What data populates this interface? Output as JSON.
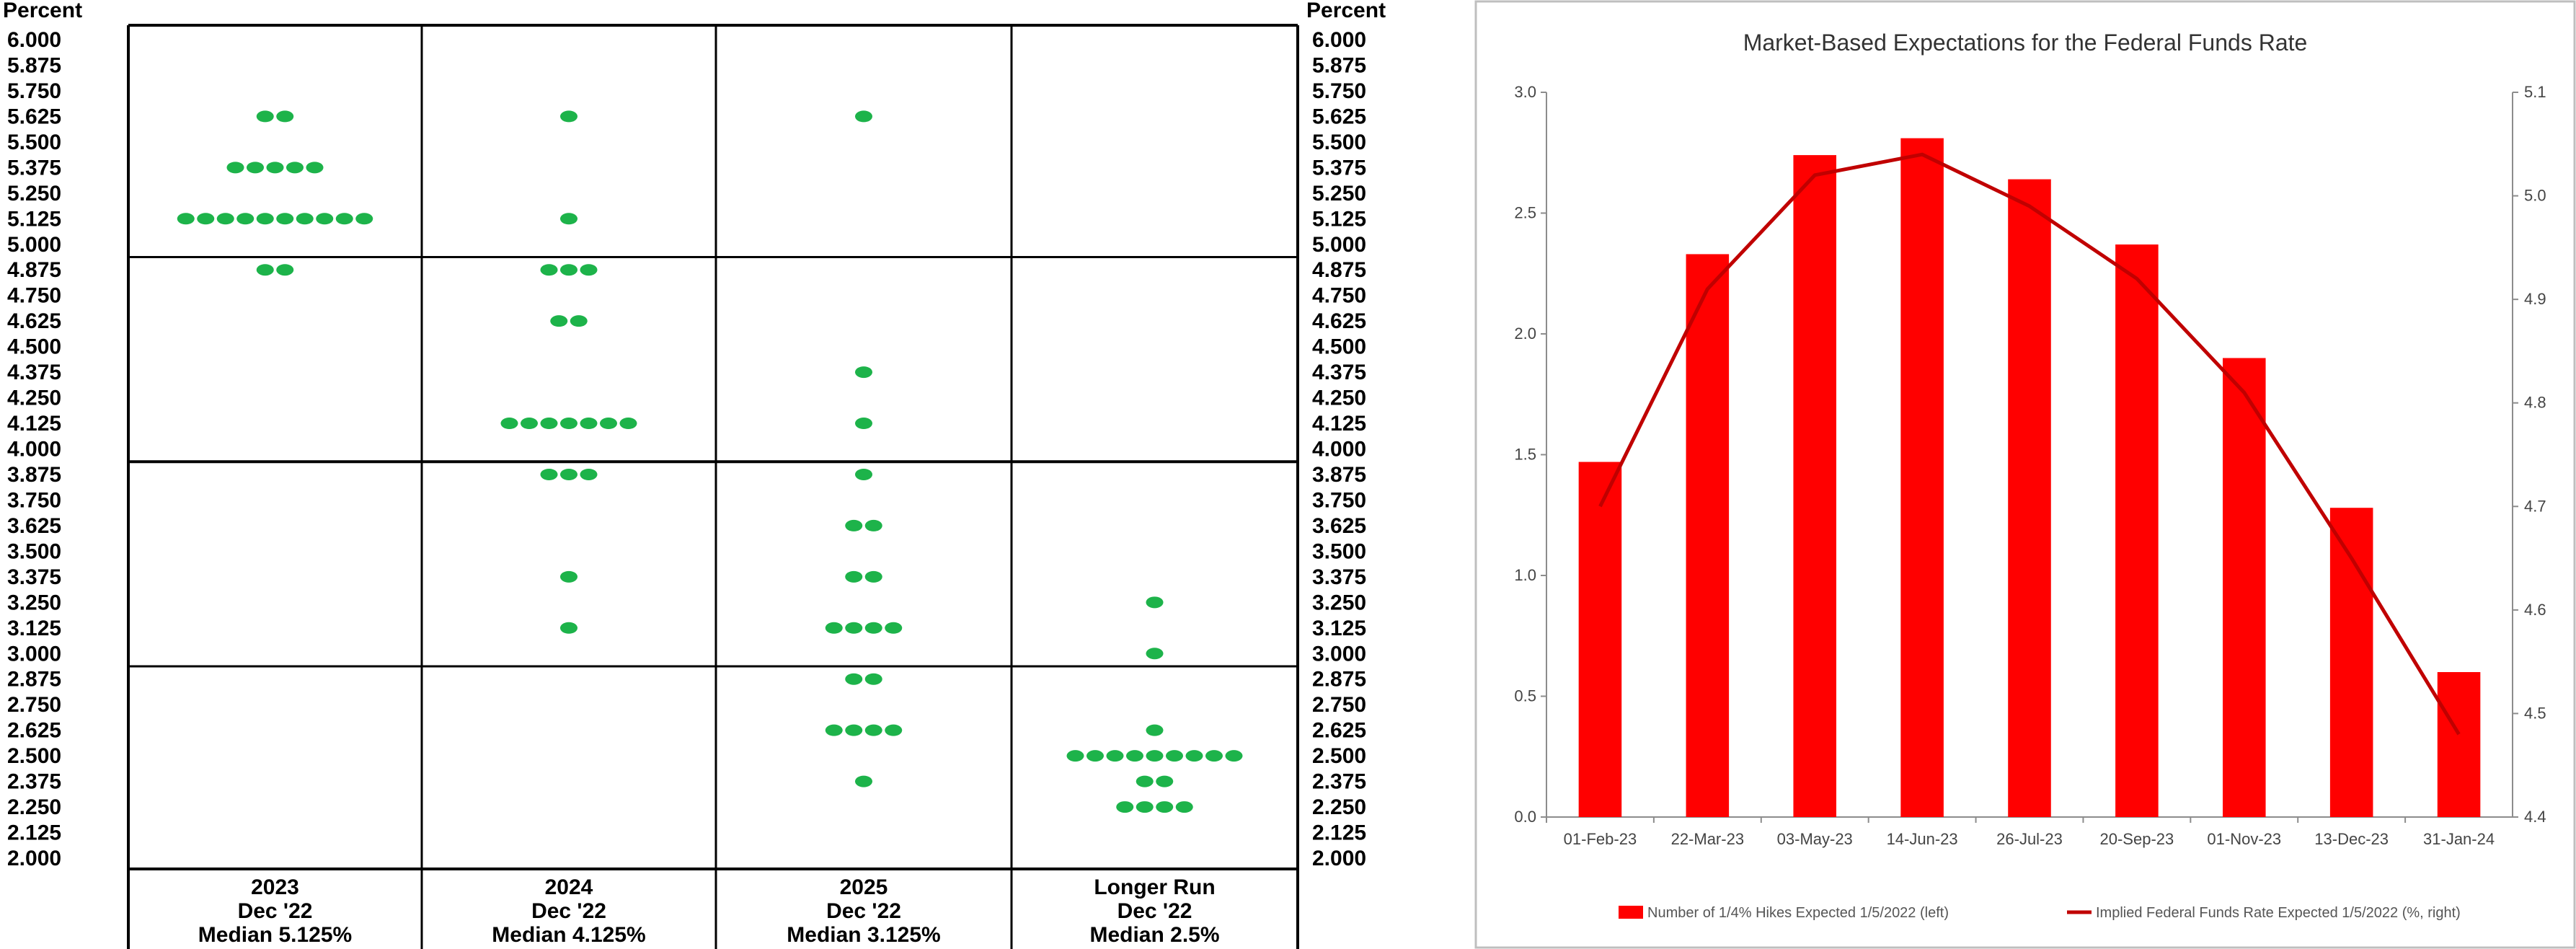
{
  "chart_data": [
    {
      "type": "scatter",
      "ylabel_left": "Percent",
      "ylabel_right": "Percent",
      "ylim": [
        2.0,
        6.0
      ],
      "y_ticks": [
        "6.000",
        "5.875",
        "5.750",
        "5.625",
        "5.500",
        "5.375",
        "5.250",
        "5.125",
        "5.000",
        "4.875",
        "4.750",
        "4.625",
        "4.500",
        "4.375",
        "4.250",
        "4.125",
        "4.000",
        "3.875",
        "3.750",
        "3.625",
        "3.500",
        "3.375",
        "3.250",
        "3.125",
        "3.000",
        "2.875",
        "2.750",
        "2.625",
        "2.500",
        "2.375",
        "2.250",
        "2.125",
        "2.000"
      ],
      "grid": true,
      "columns": [
        {
          "name": "2023",
          "label2": "Dec '22",
          "median": "Median  5.125%",
          "dots": [
            {
              "rate": 5.625,
              "count": 2
            },
            {
              "rate": 5.375,
              "count": 5
            },
            {
              "rate": 5.125,
              "count": 10
            },
            {
              "rate": 4.875,
              "count": 2
            }
          ]
        },
        {
          "name": "2024",
          "label2": "Dec '22",
          "median": "Median 4.125%",
          "dots": [
            {
              "rate": 5.625,
              "count": 1
            },
            {
              "rate": 5.125,
              "count": 1
            },
            {
              "rate": 4.875,
              "count": 3
            },
            {
              "rate": 4.625,
              "count": 2
            },
            {
              "rate": 4.125,
              "count": 7
            },
            {
              "rate": 3.875,
              "count": 3
            },
            {
              "rate": 3.375,
              "count": 1
            },
            {
              "rate": 3.125,
              "count": 1
            }
          ]
        },
        {
          "name": "2025",
          "label2": "Dec '22",
          "median": "Median 3.125%",
          "dots": [
            {
              "rate": 5.625,
              "count": 1
            },
            {
              "rate": 4.375,
              "count": 1
            },
            {
              "rate": 4.125,
              "count": 1
            },
            {
              "rate": 3.875,
              "count": 1
            },
            {
              "rate": 3.625,
              "count": 2
            },
            {
              "rate": 3.375,
              "count": 2
            },
            {
              "rate": 3.125,
              "count": 4
            },
            {
              "rate": 2.875,
              "count": 2
            },
            {
              "rate": 2.625,
              "count": 4
            },
            {
              "rate": 2.375,
              "count": 1
            }
          ]
        },
        {
          "name": "Longer Run",
          "label2": "Dec '22",
          "median": "Median  2.5%",
          "dots": [
            {
              "rate": 3.25,
              "count": 1
            },
            {
              "rate": 3.0,
              "count": 1
            },
            {
              "rate": 2.625,
              "count": 1
            },
            {
              "rate": 2.5,
              "count": 9
            },
            {
              "rate": 2.375,
              "count": 2
            },
            {
              "rate": 2.25,
              "count": 4
            }
          ]
        }
      ],
      "dot_color": "#1db34a"
    },
    {
      "type": "bar",
      "title": "Market-Based Expectations for the Federal Funds Rate",
      "categories": [
        "01-Feb-23",
        "22-Mar-23",
        "03-May-23",
        "14-Jun-23",
        "26-Jul-23",
        "20-Sep-23",
        "01-Nov-23",
        "13-Dec-23",
        "31-Jan-24"
      ],
      "series": [
        {
          "name": "Number of 1/4% Hikes Expected 1/5/2022 (left)",
          "type": "bar",
          "axis": "left",
          "color": "#ff0000",
          "values": [
            1.47,
            2.33,
            2.74,
            2.81,
            2.64,
            2.37,
            1.9,
            1.28,
            0.6
          ]
        },
        {
          "name": "Implied Federal Funds Rate Expected 1/5/2022 (%, right)",
          "type": "line",
          "axis": "right",
          "color": "#c00000",
          "values": [
            4.7,
            4.91,
            5.02,
            5.04,
            4.99,
            4.92,
            4.81,
            4.65,
            4.48
          ]
        }
      ],
      "ylim_left": [
        0.0,
        3.0
      ],
      "yticks_left": [
        "0.0",
        "0.5",
        "1.0",
        "1.5",
        "2.0",
        "2.5",
        "3.0"
      ],
      "ylim_right": [
        4.4,
        5.1
      ],
      "yticks_right": [
        "4.4",
        "4.5",
        "4.6",
        "4.7",
        "4.8",
        "4.9",
        "5.0",
        "5.1"
      ],
      "legend_position": "bottom",
      "grid": false
    }
  ]
}
